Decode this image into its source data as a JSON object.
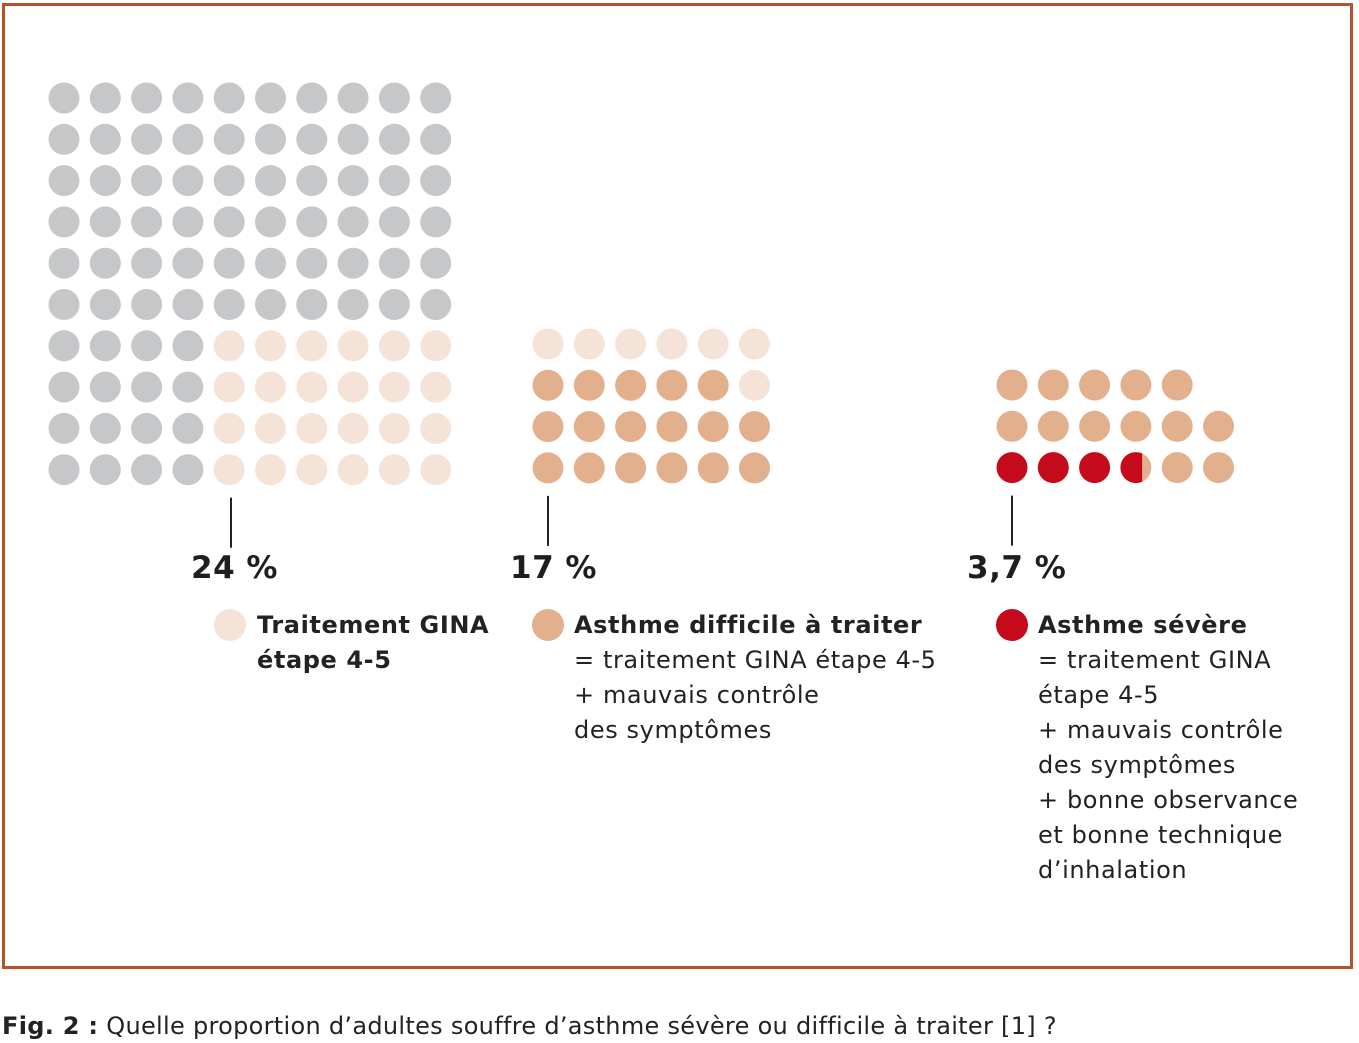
{
  "chart_data": {
    "type": "waffle",
    "units_per_dot": 1,
    "groups": [
      {
        "percent_label": "24 %",
        "value": 24,
        "total_dots": 100,
        "rows": [
          [
            "grey",
            "grey",
            "grey",
            "grey",
            "grey",
            "grey",
            "grey",
            "grey",
            "grey",
            "grey"
          ],
          [
            "grey",
            "grey",
            "grey",
            "grey",
            "grey",
            "grey",
            "grey",
            "grey",
            "grey",
            "grey"
          ],
          [
            "grey",
            "grey",
            "grey",
            "grey",
            "grey",
            "grey",
            "grey",
            "grey",
            "grey",
            "grey"
          ],
          [
            "grey",
            "grey",
            "grey",
            "grey",
            "grey",
            "grey",
            "grey",
            "grey",
            "grey",
            "grey"
          ],
          [
            "grey",
            "grey",
            "grey",
            "grey",
            "grey",
            "grey",
            "grey",
            "grey",
            "grey",
            "grey"
          ],
          [
            "grey",
            "grey",
            "grey",
            "grey",
            "grey",
            "grey",
            "grey",
            "grey",
            "grey",
            "grey"
          ],
          [
            "grey",
            "grey",
            "grey",
            "grey",
            "light",
            "light",
            "light",
            "light",
            "light",
            "light"
          ],
          [
            "grey",
            "grey",
            "grey",
            "grey",
            "light",
            "light",
            "light",
            "light",
            "light",
            "light"
          ],
          [
            "grey",
            "grey",
            "grey",
            "grey",
            "light",
            "light",
            "light",
            "light",
            "light",
            "light"
          ],
          [
            "grey",
            "grey",
            "grey",
            "grey",
            "light",
            "light",
            "light",
            "light",
            "light",
            "light"
          ]
        ],
        "legend_color": "light",
        "legend_title": [
          "Traitement GINA",
          "étape 4-5"
        ],
        "legend_lines": []
      },
      {
        "percent_label": "17 %",
        "value": 17,
        "total_dots": 24,
        "rows": [
          [
            "light",
            "light",
            "light",
            "light",
            "light",
            "light"
          ],
          [
            "tan",
            "tan",
            "tan",
            "tan",
            "tan",
            "light"
          ],
          [
            "tan",
            "tan",
            "tan",
            "tan",
            "tan",
            "tan"
          ],
          [
            "tan",
            "tan",
            "tan",
            "tan",
            "tan",
            "tan"
          ]
        ],
        "legend_color": "tan",
        "legend_title": [
          "Asthme difficile à traiter"
        ],
        "legend_lines": [
          "= traitement GINA étape 4-5",
          "+ mauvais contrôle",
          "des symptômes"
        ]
      },
      {
        "percent_label": "3,7 %",
        "value": 3.7,
        "total_dots": 17,
        "rows": [
          [
            "tan",
            "tan",
            "tan",
            "tan",
            "tan",
            null
          ],
          [
            "tan",
            "tan",
            "tan",
            "tan",
            "tan",
            "tan"
          ],
          [
            "red",
            "red",
            "red",
            "half",
            "tan",
            "tan"
          ]
        ],
        "legend_color": "red",
        "legend_title": [
          "Asthme sévère"
        ],
        "legend_lines": [
          "= traitement GINA",
          "étape 4-5",
          "+ mauvais contrôle",
          "des symptômes",
          "+ bonne observance",
          "et bonne technique",
          "d’inhalation"
        ]
      }
    ],
    "colors": {
      "grey": "#c6c7c9",
      "light": "#f5e3d8",
      "tan": "#e3b08e",
      "red": "#c50a1b",
      "frame": "#b5522a"
    }
  },
  "caption": {
    "label": "Fig. 2 :",
    "text": " Quelle proportion d’adultes souffre d’asthme sévère ou difficile à traiter [1] ?"
  }
}
